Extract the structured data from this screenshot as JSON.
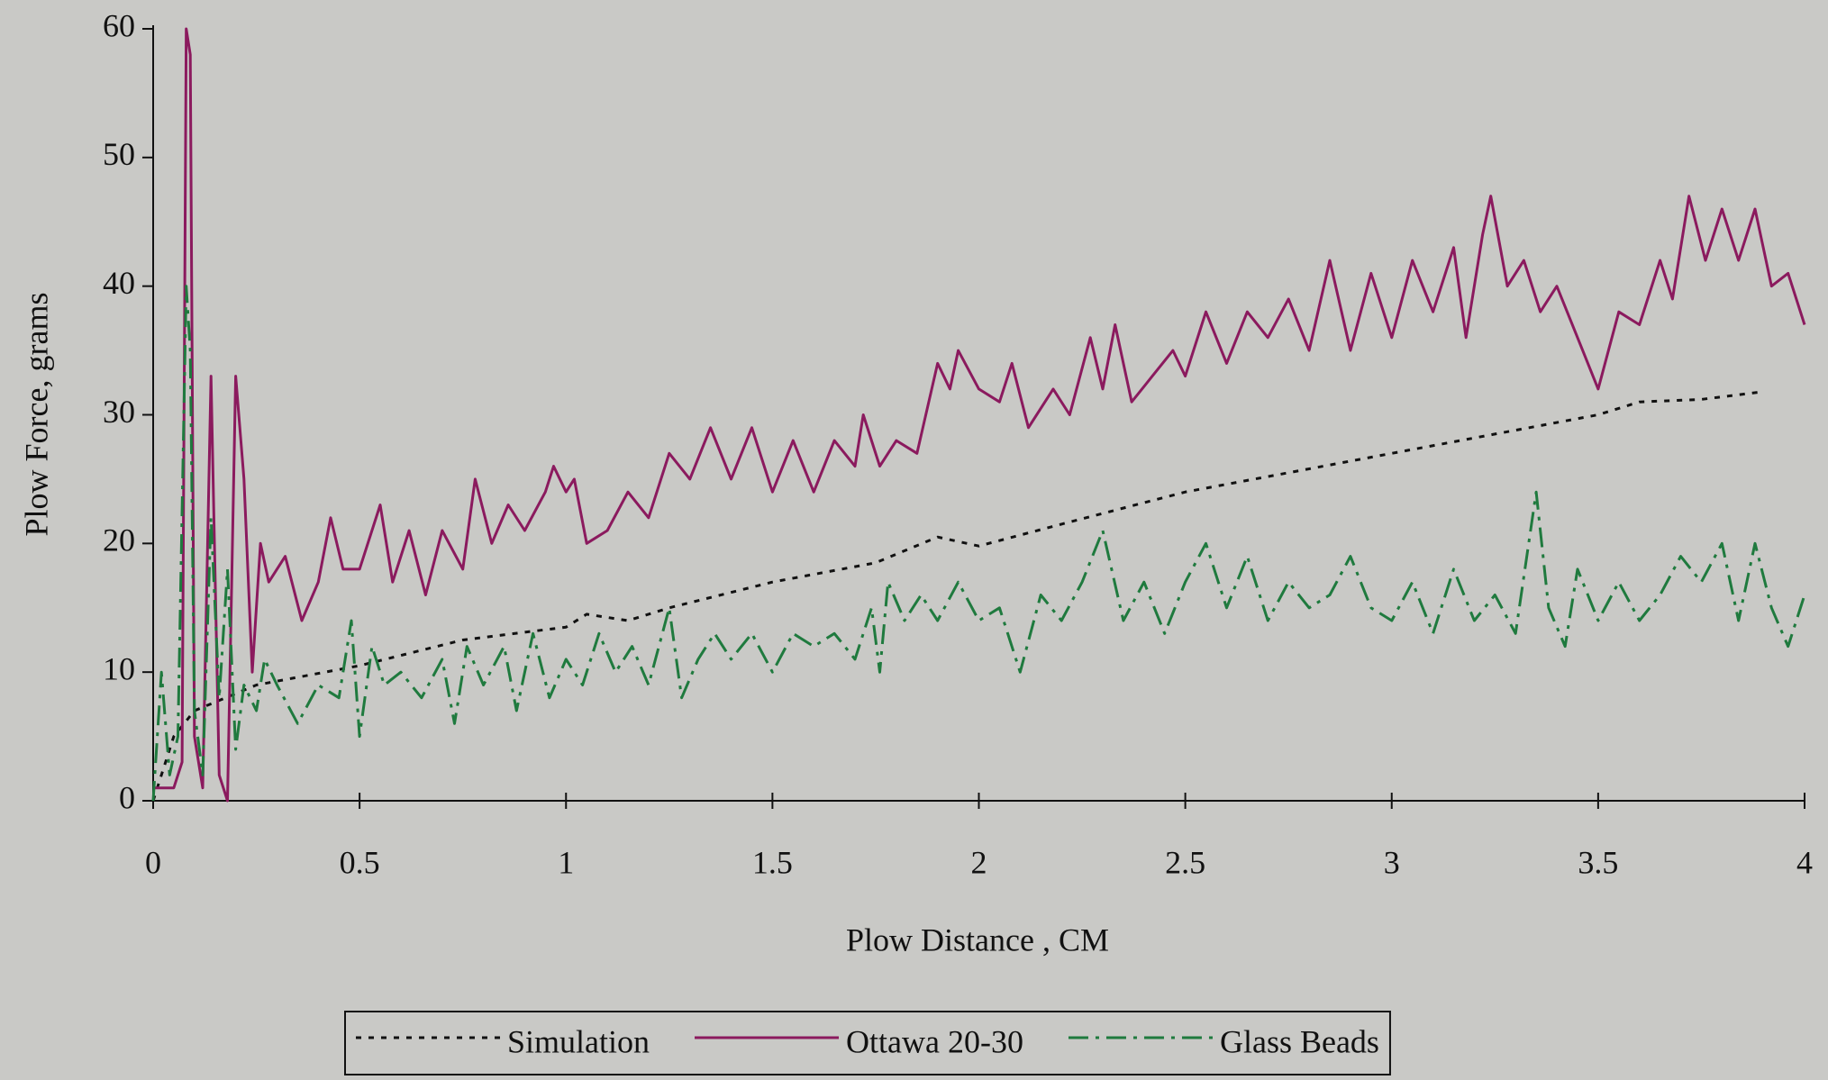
{
  "chart_data": {
    "type": "line",
    "x_label": "Plow Distance , CM",
    "y_label": "Plow Force, grams",
    "xlim": [
      0,
      4
    ],
    "xticks": [
      0,
      0.5,
      1,
      1.5,
      2,
      2.5,
      3,
      3.5,
      4
    ],
    "ylim": [
      0,
      60
    ],
    "yticks": [
      0,
      10,
      20,
      30,
      40,
      50,
      60
    ],
    "grid": false,
    "legend": "bottom",
    "series": [
      {
        "name": "Simulation",
        "color": "#111111",
        "dash": "dotted",
        "x": [
          0,
          0.05,
          0.1,
          0.25,
          0.5,
          0.75,
          1.0,
          1.05,
          1.15,
          1.25,
          1.5,
          1.75,
          1.9,
          2.0,
          2.2,
          2.5,
          2.75,
          3.0,
          3.25,
          3.5,
          3.6,
          3.75,
          3.9
        ],
        "values": [
          0,
          5,
          7,
          9,
          10.5,
          12.5,
          13.5,
          14.5,
          14,
          15,
          17,
          18.5,
          20.5,
          19.8,
          21.5,
          24,
          25.5,
          27,
          28.5,
          30,
          31,
          31.2,
          31.8
        ]
      },
      {
        "name": "Ottawa 20-30",
        "color": "#8b1a5e",
        "dash": "solid",
        "x": [
          0,
          0.05,
          0.07,
          0.08,
          0.09,
          0.1,
          0.12,
          0.14,
          0.16,
          0.18,
          0.2,
          0.22,
          0.24,
          0.26,
          0.28,
          0.32,
          0.36,
          0.4,
          0.43,
          0.46,
          0.5,
          0.55,
          0.58,
          0.62,
          0.66,
          0.7,
          0.75,
          0.78,
          0.82,
          0.86,
          0.9,
          0.95,
          0.97,
          1.0,
          1.02,
          1.05,
          1.1,
          1.15,
          1.2,
          1.25,
          1.3,
          1.35,
          1.4,
          1.45,
          1.5,
          1.55,
          1.6,
          1.65,
          1.7,
          1.72,
          1.76,
          1.8,
          1.85,
          1.9,
          1.93,
          1.95,
          2.0,
          2.05,
          2.08,
          2.12,
          2.18,
          2.22,
          2.27,
          2.3,
          2.33,
          2.37,
          2.42,
          2.47,
          2.5,
          2.55,
          2.6,
          2.65,
          2.7,
          2.75,
          2.8,
          2.85,
          2.9,
          2.95,
          3.0,
          3.05,
          3.1,
          3.15,
          3.18,
          3.22,
          3.24,
          3.28,
          3.32,
          3.36,
          3.4,
          3.45,
          3.5,
          3.55,
          3.6,
          3.65,
          3.68,
          3.72,
          3.76,
          3.8,
          3.84,
          3.88,
          3.92,
          3.96,
          4.0
        ],
        "values": [
          1,
          1,
          3,
          60,
          58,
          5,
          1,
          33,
          2,
          0,
          33,
          25,
          10,
          20,
          17,
          19,
          14,
          17,
          22,
          18,
          18,
          23,
          17,
          21,
          16,
          21,
          18,
          25,
          20,
          23,
          21,
          24,
          26,
          24,
          25,
          20,
          21,
          24,
          22,
          27,
          25,
          29,
          25,
          29,
          24,
          28,
          24,
          28,
          26,
          30,
          26,
          28,
          27,
          34,
          32,
          35,
          32,
          31,
          34,
          29,
          32,
          30,
          36,
          32,
          37,
          31,
          33,
          35,
          33,
          38,
          34,
          38,
          36,
          39,
          35,
          42,
          35,
          41,
          36,
          42,
          38,
          43,
          36,
          44,
          47,
          40,
          42,
          38,
          40,
          36,
          32,
          38,
          37,
          42,
          39,
          47,
          42,
          46,
          42,
          46,
          40,
          41,
          37
        ]
      },
      {
        "name": "Glass Beads",
        "color": "#1f7a3e",
        "dash": "dashdot",
        "x": [
          0,
          0.02,
          0.04,
          0.06,
          0.08,
          0.09,
          0.1,
          0.12,
          0.14,
          0.16,
          0.18,
          0.2,
          0.22,
          0.25,
          0.27,
          0.3,
          0.35,
          0.4,
          0.45,
          0.48,
          0.5,
          0.53,
          0.56,
          0.6,
          0.65,
          0.7,
          0.73,
          0.76,
          0.8,
          0.85,
          0.88,
          0.92,
          0.96,
          1.0,
          1.04,
          1.08,
          1.12,
          1.16,
          1.2,
          1.25,
          1.28,
          1.32,
          1.36,
          1.4,
          1.45,
          1.5,
          1.55,
          1.6,
          1.65,
          1.7,
          1.74,
          1.76,
          1.78,
          1.82,
          1.86,
          1.9,
          1.95,
          2.0,
          2.05,
          2.1,
          2.15,
          2.2,
          2.25,
          2.3,
          2.35,
          2.4,
          2.45,
          2.5,
          2.55,
          2.6,
          2.65,
          2.7,
          2.75,
          2.8,
          2.85,
          2.9,
          2.95,
          3.0,
          3.05,
          3.1,
          3.15,
          3.2,
          3.25,
          3.3,
          3.35,
          3.38,
          3.42,
          3.45,
          3.5,
          3.55,
          3.6,
          3.65,
          3.7,
          3.75,
          3.8,
          3.84,
          3.88,
          3.92,
          3.96,
          4.0
        ],
        "values": [
          0,
          10,
          2,
          5,
          40,
          35,
          7,
          2,
          22,
          8,
          18,
          4,
          9,
          7,
          11,
          9,
          6,
          9,
          8,
          14,
          5,
          12,
          9,
          10,
          8,
          11,
          6,
          12,
          9,
          12,
          7,
          13,
          8,
          11,
          9,
          13,
          10,
          12,
          9,
          15,
          8,
          11,
          13,
          11,
          13,
          10,
          13,
          12,
          13,
          11,
          15,
          10,
          17,
          14,
          16,
          14,
          17,
          14,
          15,
          10,
          16,
          14,
          17,
          21,
          14,
          17,
          13,
          17,
          20,
          15,
          19,
          14,
          17,
          15,
          16,
          19,
          15,
          14,
          17,
          13,
          18,
          14,
          16,
          13,
          24,
          15,
          12,
          18,
          14,
          17,
          14,
          16,
          19,
          17,
          20,
          14,
          20,
          15,
          12,
          16
        ]
      }
    ]
  }
}
